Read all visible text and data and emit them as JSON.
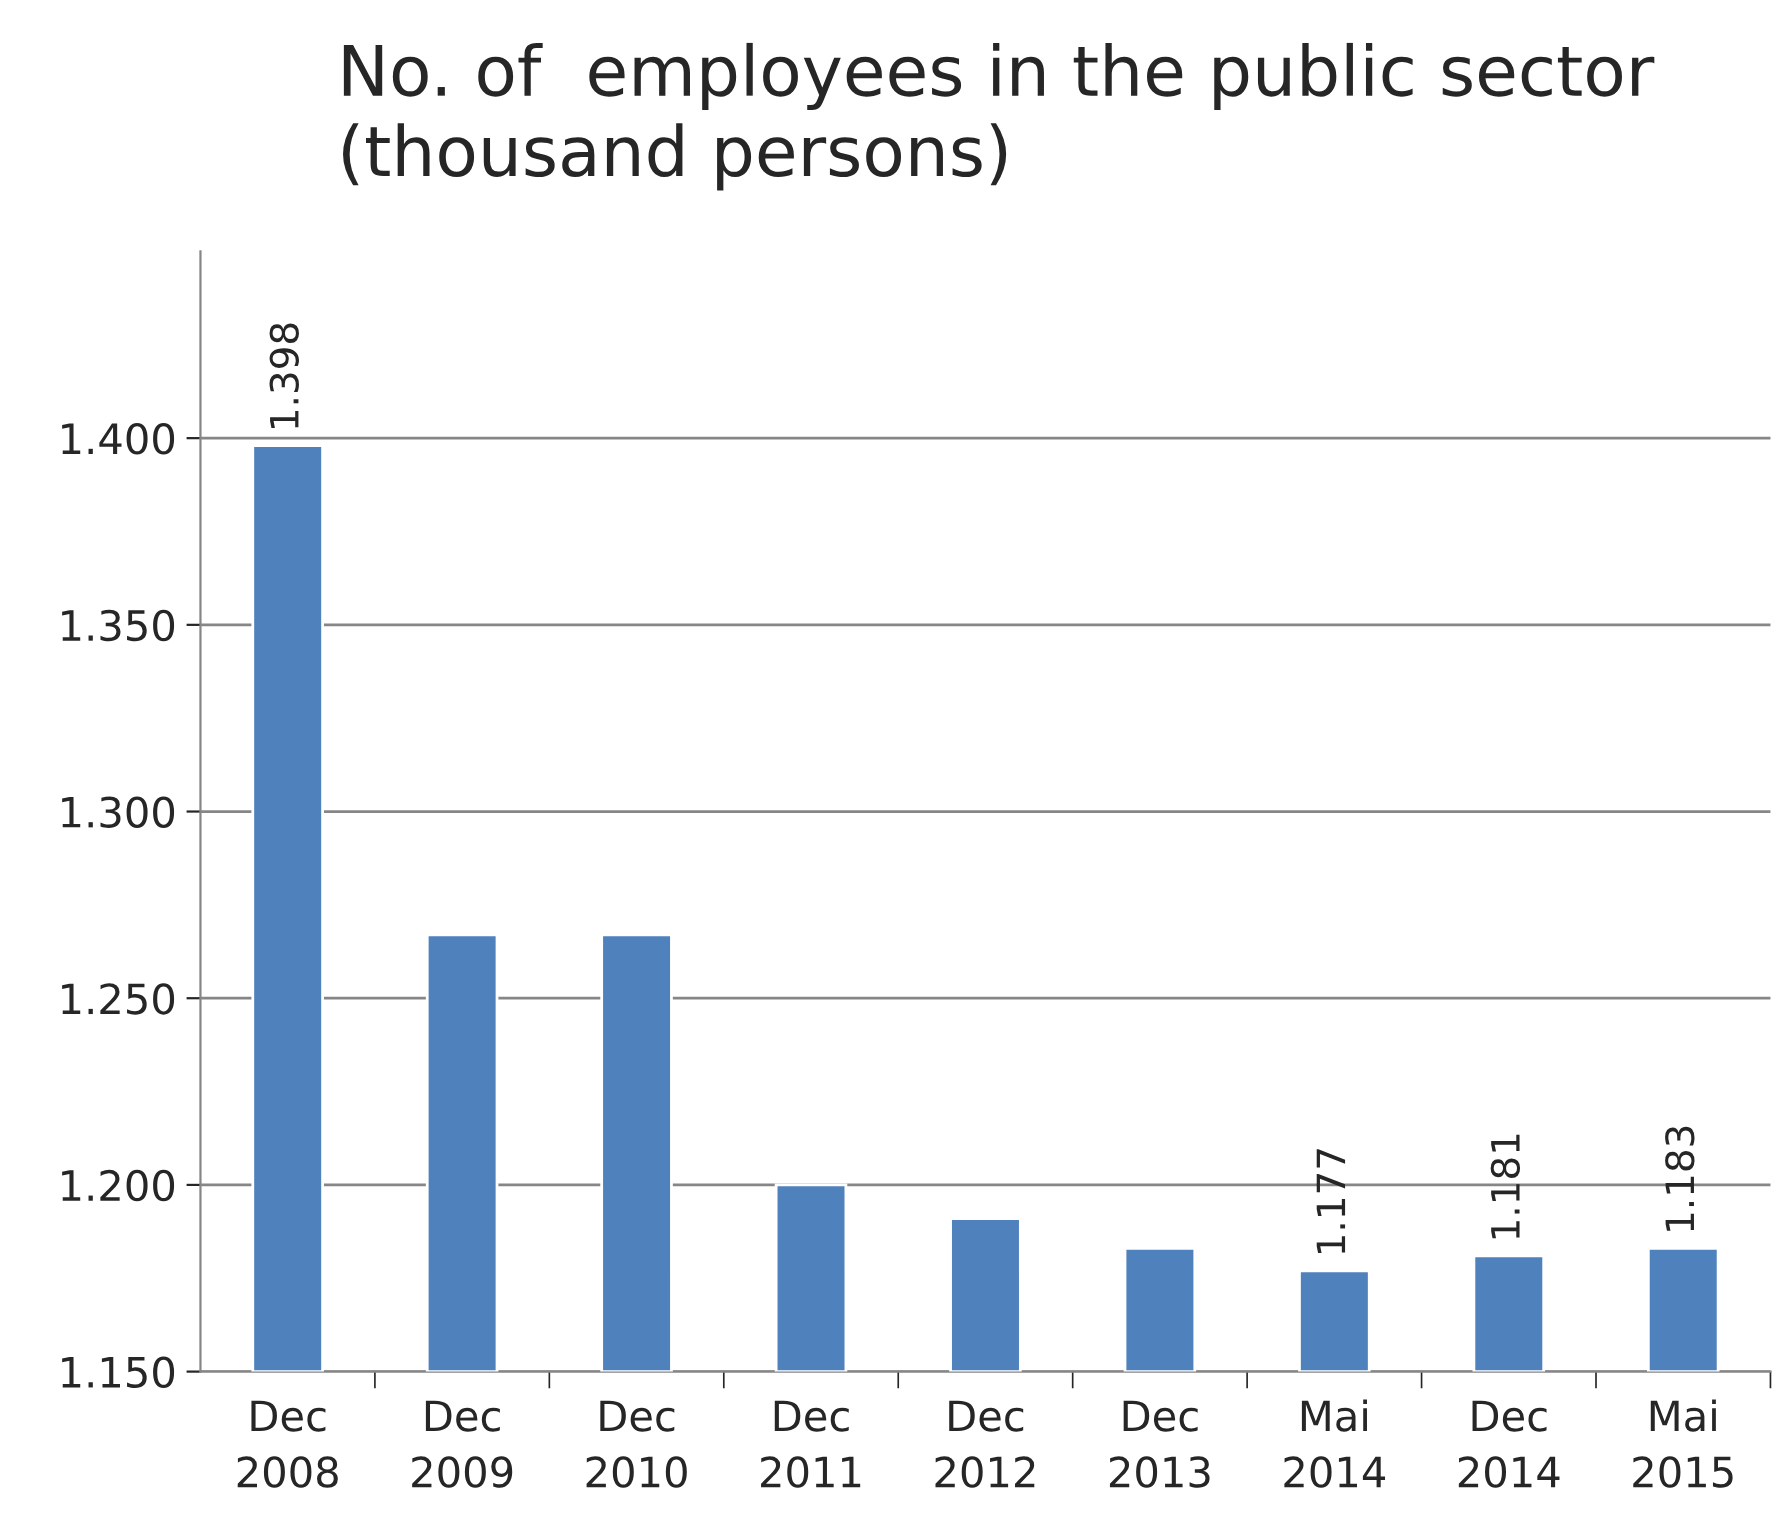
{
  "chart_data": {
    "type": "bar",
    "title": "No. of  employees in the public sector\n(thousand persons)",
    "categories": [
      "Dec\n2008",
      "Dec\n2009",
      "Dec\n2010",
      "Dec\n2011",
      "Dec\n2012",
      "Dec\n2013",
      "Mai\n2014",
      "Dec\n2014",
      "Mai\n2015"
    ],
    "values": [
      1.398,
      1.267,
      1.267,
      1.2,
      1.191,
      1.183,
      1.177,
      1.181,
      1.183
    ],
    "value_labels": [
      "1.398",
      null,
      null,
      null,
      null,
      null,
      "1.177",
      "1.181",
      "1.183"
    ],
    "color": "#4f81bd",
    "ylim": [
      1.15,
      1.45
    ],
    "yticks": [
      {
        "value": 1.15,
        "label": "1.150"
      },
      {
        "value": 1.2,
        "label": "1.200"
      },
      {
        "value": 1.25,
        "label": "1.250"
      },
      {
        "value": 1.3,
        "label": "1.300"
      },
      {
        "value": 1.35,
        "label": "1.350"
      },
      {
        "value": 1.4,
        "label": "1.400"
      }
    ],
    "grid": "y",
    "legend": false
  }
}
